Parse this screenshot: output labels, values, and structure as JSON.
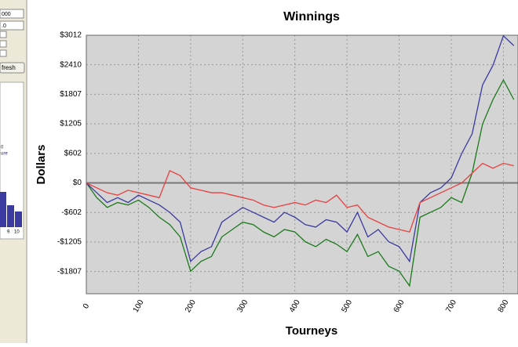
{
  "sidebar": {
    "inputs": [
      "000",
      ".0"
    ],
    "button": "fresh",
    "labels": [
      "0",
      "ure"
    ],
    "histogram_labels": [
      "9",
      "10"
    ]
  },
  "chart_data": {
    "type": "line",
    "title": "Winnings",
    "x_label": "Tourneys",
    "y_label": "Dollars",
    "x": [
      0,
      20,
      40,
      60,
      80,
      100,
      120,
      140,
      160,
      180,
      200,
      220,
      240,
      260,
      280,
      300,
      320,
      340,
      360,
      380,
      400,
      420,
      440,
      460,
      480,
      500,
      520,
      540,
      560,
      580,
      600,
      620,
      640,
      660,
      680,
      700,
      720,
      740,
      760,
      780,
      800,
      820
    ],
    "series": [
      {
        "color": "#1a7a1a",
        "values": [
          0,
          -300,
          -500,
          -400,
          -450,
          -350,
          -500,
          -700,
          -850,
          -1100,
          -1800,
          -1600,
          -1500,
          -1100,
          -950,
          -800,
          -850,
          -1000,
          -1100,
          -950,
          -1000,
          -1200,
          -1300,
          -1150,
          -1250,
          -1400,
          -1050,
          -1500,
          -1400,
          -1700,
          -1800,
          -2100,
          -700,
          -600,
          -500,
          -300,
          -400,
          200,
          1200,
          1700,
          2100,
          1700
        ]
      },
      {
        "color": "#3a3aa0",
        "values": [
          0,
          -200,
          -400,
          -300,
          -400,
          -250,
          -350,
          -450,
          -600,
          -800,
          -1600,
          -1400,
          -1300,
          -800,
          -650,
          -500,
          -600,
          -700,
          -800,
          -600,
          -700,
          -850,
          -900,
          -750,
          -800,
          -1000,
          -600,
          -1100,
          -950,
          -1200,
          -1300,
          -1600,
          -400,
          -200,
          -100,
          100,
          600,
          1000,
          2000,
          2400,
          3000,
          2800
        ]
      },
      {
        "color": "#e84040",
        "values": [
          0,
          -100,
          -200,
          -250,
          -150,
          -200,
          -250,
          -300,
          250,
          150,
          -100,
          -150,
          -200,
          -200,
          -250,
          -300,
          -350,
          -450,
          -500,
          -450,
          -400,
          -450,
          -350,
          -400,
          -250,
          -500,
          -450,
          -700,
          -800,
          -900,
          -950,
          -1000,
          -400,
          -300,
          -200,
          -100,
          0,
          200,
          400,
          300,
          400,
          350
        ]
      }
    ],
    "xlim": [
      0,
      828
    ],
    "xticks": [
      0,
      100,
      200,
      300,
      400,
      500,
      600,
      700,
      800
    ],
    "ylim": [
      -2260,
      3012
    ],
    "yticks": [
      {
        "value": -1807,
        "label": "-$1807"
      },
      {
        "value": -1205,
        "label": "-$1205"
      },
      {
        "value": -602,
        "label": "-$602"
      },
      {
        "value": 0,
        "label": "$0"
      },
      {
        "value": 602,
        "label": "$602"
      },
      {
        "value": 1205,
        "label": "$1205"
      },
      {
        "value": 1807,
        "label": "$1807"
      },
      {
        "value": 2410,
        "label": "$2410"
      },
      {
        "value": 3012,
        "label": "$3012"
      }
    ],
    "grid": true
  }
}
